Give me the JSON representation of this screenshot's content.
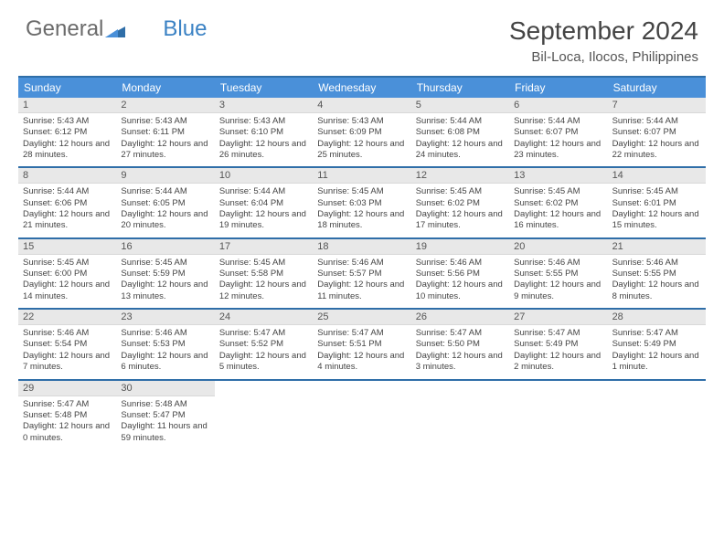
{
  "brand": {
    "part1": "General",
    "part2": "Blue"
  },
  "title": "September 2024",
  "location": "Bil-Loca, Ilocos, Philippines",
  "colors": {
    "header_bg": "#4a90d9",
    "header_text": "#ffffff",
    "border": "#2f6ea8",
    "daynum_bg": "#e8e8e8",
    "text": "#444444",
    "logo_gray": "#6b6b6b",
    "logo_blue": "#3b82c4"
  },
  "day_names": [
    "Sunday",
    "Monday",
    "Tuesday",
    "Wednesday",
    "Thursday",
    "Friday",
    "Saturday"
  ],
  "weeks": [
    [
      {
        "n": "1",
        "sunrise": "Sunrise: 5:43 AM",
        "sunset": "Sunset: 6:12 PM",
        "daylight": "Daylight: 12 hours and 28 minutes."
      },
      {
        "n": "2",
        "sunrise": "Sunrise: 5:43 AM",
        "sunset": "Sunset: 6:11 PM",
        "daylight": "Daylight: 12 hours and 27 minutes."
      },
      {
        "n": "3",
        "sunrise": "Sunrise: 5:43 AM",
        "sunset": "Sunset: 6:10 PM",
        "daylight": "Daylight: 12 hours and 26 minutes."
      },
      {
        "n": "4",
        "sunrise": "Sunrise: 5:43 AM",
        "sunset": "Sunset: 6:09 PM",
        "daylight": "Daylight: 12 hours and 25 minutes."
      },
      {
        "n": "5",
        "sunrise": "Sunrise: 5:44 AM",
        "sunset": "Sunset: 6:08 PM",
        "daylight": "Daylight: 12 hours and 24 minutes."
      },
      {
        "n": "6",
        "sunrise": "Sunrise: 5:44 AM",
        "sunset": "Sunset: 6:07 PM",
        "daylight": "Daylight: 12 hours and 23 minutes."
      },
      {
        "n": "7",
        "sunrise": "Sunrise: 5:44 AM",
        "sunset": "Sunset: 6:07 PM",
        "daylight": "Daylight: 12 hours and 22 minutes."
      }
    ],
    [
      {
        "n": "8",
        "sunrise": "Sunrise: 5:44 AM",
        "sunset": "Sunset: 6:06 PM",
        "daylight": "Daylight: 12 hours and 21 minutes."
      },
      {
        "n": "9",
        "sunrise": "Sunrise: 5:44 AM",
        "sunset": "Sunset: 6:05 PM",
        "daylight": "Daylight: 12 hours and 20 minutes."
      },
      {
        "n": "10",
        "sunrise": "Sunrise: 5:44 AM",
        "sunset": "Sunset: 6:04 PM",
        "daylight": "Daylight: 12 hours and 19 minutes."
      },
      {
        "n": "11",
        "sunrise": "Sunrise: 5:45 AM",
        "sunset": "Sunset: 6:03 PM",
        "daylight": "Daylight: 12 hours and 18 minutes."
      },
      {
        "n": "12",
        "sunrise": "Sunrise: 5:45 AM",
        "sunset": "Sunset: 6:02 PM",
        "daylight": "Daylight: 12 hours and 17 minutes."
      },
      {
        "n": "13",
        "sunrise": "Sunrise: 5:45 AM",
        "sunset": "Sunset: 6:02 PM",
        "daylight": "Daylight: 12 hours and 16 minutes."
      },
      {
        "n": "14",
        "sunrise": "Sunrise: 5:45 AM",
        "sunset": "Sunset: 6:01 PM",
        "daylight": "Daylight: 12 hours and 15 minutes."
      }
    ],
    [
      {
        "n": "15",
        "sunrise": "Sunrise: 5:45 AM",
        "sunset": "Sunset: 6:00 PM",
        "daylight": "Daylight: 12 hours and 14 minutes."
      },
      {
        "n": "16",
        "sunrise": "Sunrise: 5:45 AM",
        "sunset": "Sunset: 5:59 PM",
        "daylight": "Daylight: 12 hours and 13 minutes."
      },
      {
        "n": "17",
        "sunrise": "Sunrise: 5:45 AM",
        "sunset": "Sunset: 5:58 PM",
        "daylight": "Daylight: 12 hours and 12 minutes."
      },
      {
        "n": "18",
        "sunrise": "Sunrise: 5:46 AM",
        "sunset": "Sunset: 5:57 PM",
        "daylight": "Daylight: 12 hours and 11 minutes."
      },
      {
        "n": "19",
        "sunrise": "Sunrise: 5:46 AM",
        "sunset": "Sunset: 5:56 PM",
        "daylight": "Daylight: 12 hours and 10 minutes."
      },
      {
        "n": "20",
        "sunrise": "Sunrise: 5:46 AM",
        "sunset": "Sunset: 5:55 PM",
        "daylight": "Daylight: 12 hours and 9 minutes."
      },
      {
        "n": "21",
        "sunrise": "Sunrise: 5:46 AM",
        "sunset": "Sunset: 5:55 PM",
        "daylight": "Daylight: 12 hours and 8 minutes."
      }
    ],
    [
      {
        "n": "22",
        "sunrise": "Sunrise: 5:46 AM",
        "sunset": "Sunset: 5:54 PM",
        "daylight": "Daylight: 12 hours and 7 minutes."
      },
      {
        "n": "23",
        "sunrise": "Sunrise: 5:46 AM",
        "sunset": "Sunset: 5:53 PM",
        "daylight": "Daylight: 12 hours and 6 minutes."
      },
      {
        "n": "24",
        "sunrise": "Sunrise: 5:47 AM",
        "sunset": "Sunset: 5:52 PM",
        "daylight": "Daylight: 12 hours and 5 minutes."
      },
      {
        "n": "25",
        "sunrise": "Sunrise: 5:47 AM",
        "sunset": "Sunset: 5:51 PM",
        "daylight": "Daylight: 12 hours and 4 minutes."
      },
      {
        "n": "26",
        "sunrise": "Sunrise: 5:47 AM",
        "sunset": "Sunset: 5:50 PM",
        "daylight": "Daylight: 12 hours and 3 minutes."
      },
      {
        "n": "27",
        "sunrise": "Sunrise: 5:47 AM",
        "sunset": "Sunset: 5:49 PM",
        "daylight": "Daylight: 12 hours and 2 minutes."
      },
      {
        "n": "28",
        "sunrise": "Sunrise: 5:47 AM",
        "sunset": "Sunset: 5:49 PM",
        "daylight": "Daylight: 12 hours and 1 minute."
      }
    ],
    [
      {
        "n": "29",
        "sunrise": "Sunrise: 5:47 AM",
        "sunset": "Sunset: 5:48 PM",
        "daylight": "Daylight: 12 hours and 0 minutes."
      },
      {
        "n": "30",
        "sunrise": "Sunrise: 5:48 AM",
        "sunset": "Sunset: 5:47 PM",
        "daylight": "Daylight: 11 hours and 59 minutes."
      },
      null,
      null,
      null,
      null,
      null
    ]
  ]
}
